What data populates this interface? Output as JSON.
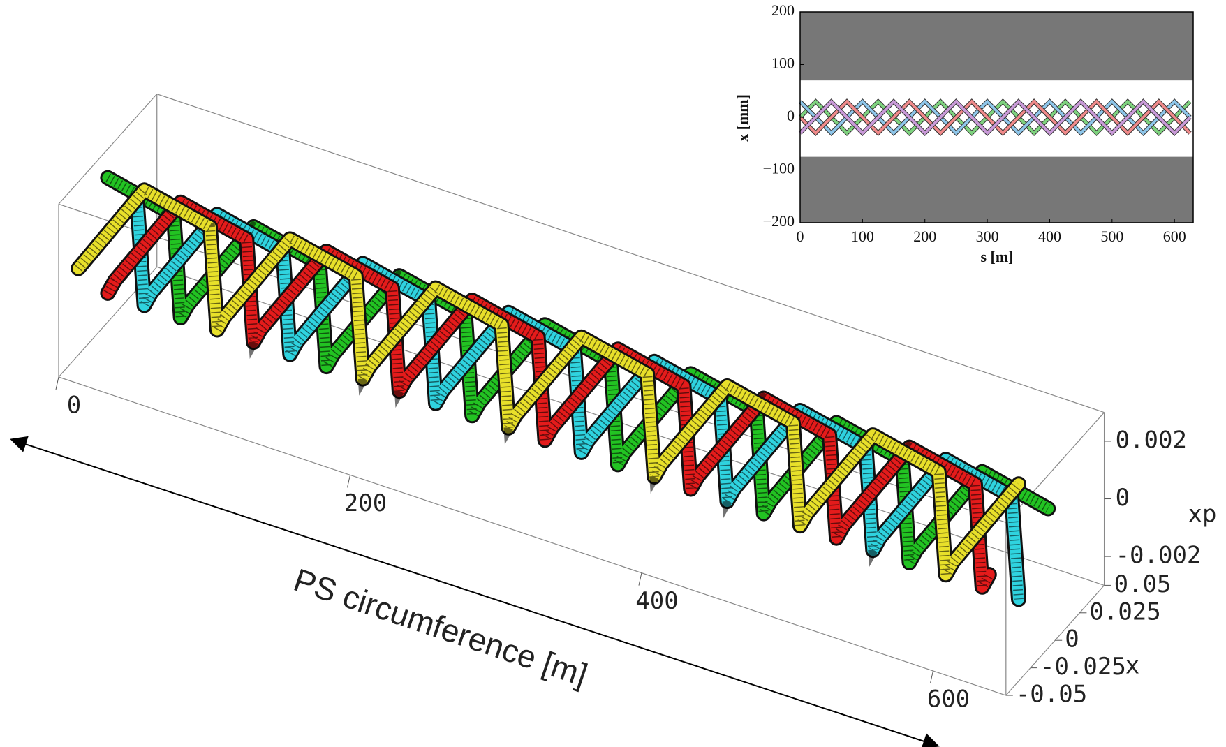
{
  "chart_data": [
    {
      "type": "tube3d",
      "s_label": "PS circumference [m]",
      "x_label": "x",
      "xp_label": "xp",
      "s": [
        0,
        25,
        50,
        75,
        100,
        125,
        150,
        175,
        200,
        225,
        250,
        275,
        300,
        325,
        350,
        375,
        400,
        425,
        450,
        475,
        500,
        525,
        550,
        575,
        600,
        625
      ],
      "slim": [
        0,
        650
      ],
      "sticks": [
        0,
        200,
        400,
        600
      ],
      "xlim": [
        -0.05,
        0.05
      ],
      "xticks": [
        0.05,
        0.025,
        0,
        -0.025,
        -0.05
      ],
      "xplim": [
        -0.003,
        0.003
      ],
      "xpticks": [
        0.002,
        0,
        -0.002
      ],
      "series": [
        {
          "color": "#22c322",
          "x": [
            0,
            0.03,
            0,
            -0.03,
            0,
            0.03,
            0,
            -0.03,
            0,
            0.03,
            0,
            -0.03,
            0,
            0.03,
            0,
            -0.03,
            0,
            0.03,
            0,
            -0.03,
            0,
            0.03,
            0,
            -0.03,
            0,
            0.03
          ],
          "xp": [
            0.002,
            0,
            -0.002,
            0,
            0.002,
            0,
            -0.002,
            0,
            0.002,
            0,
            -0.002,
            0,
            0.002,
            0,
            -0.002,
            0,
            0.002,
            0,
            -0.002,
            0,
            0.002,
            0,
            -0.002,
            0,
            0.002,
            0
          ]
        },
        {
          "color": "#2fd3df",
          "x": [
            0.03,
            0,
            -0.03,
            0,
            0.03,
            0,
            -0.03,
            0,
            0.03,
            0,
            -0.03,
            0,
            0.03,
            0,
            -0.03,
            0,
            0.03,
            0,
            -0.03,
            0,
            0.03,
            0,
            -0.03,
            0,
            0.03,
            0
          ],
          "xp": [
            0,
            -0.002,
            0,
            0.002,
            0,
            -0.002,
            0,
            0.002,
            0,
            -0.002,
            0,
            0.002,
            0,
            -0.002,
            0,
            0.002,
            0,
            -0.002,
            0,
            0.002,
            0,
            -0.002,
            0,
            0.002,
            0,
            -0.002
          ]
        },
        {
          "color": "#e41b1b",
          "x": [
            0,
            -0.03,
            0,
            0.03,
            0,
            -0.03,
            0,
            0.03,
            0,
            -0.03,
            0,
            0.03,
            0,
            -0.03,
            0,
            0.03,
            0,
            -0.03,
            0,
            0.03,
            0,
            -0.03,
            0,
            0.03,
            0,
            -0.03
          ],
          "xp": [
            -0.002,
            0,
            0.002,
            0,
            -0.002,
            0,
            0.002,
            0,
            -0.002,
            0,
            0.002,
            0,
            -0.002,
            0,
            0.002,
            0,
            -0.002,
            0,
            0.002,
            0,
            -0.002,
            0,
            0.002,
            0,
            -0.002,
            0
          ]
        },
        {
          "color": "#e8e02a",
          "x": [
            -0.03,
            0,
            0.03,
            0,
            -0.03,
            0,
            0.03,
            0,
            -0.03,
            0,
            0.03,
            0,
            -0.03,
            0,
            0.03,
            0,
            -0.03,
            0,
            0.03,
            0,
            -0.03,
            0,
            0.03,
            0,
            -0.03,
            0
          ],
          "xp": [
            0,
            0.002,
            0,
            -0.002,
            0,
            0.002,
            0,
            -0.002,
            0,
            0.002,
            0,
            -0.002,
            0,
            0.002,
            0,
            -0.002,
            0,
            0.002,
            0,
            -0.002,
            0,
            0.002,
            0,
            -0.002,
            0,
            0.002
          ]
        }
      ]
    },
    {
      "type": "line",
      "x_label": "s [m]",
      "y_label": "x [mm]",
      "x": [
        0,
        25,
        50,
        75,
        100,
        125,
        150,
        175,
        200,
        225,
        250,
        275,
        300,
        325,
        350,
        375,
        400,
        425,
        450,
        475,
        500,
        525,
        550,
        575,
        600,
        625
      ],
      "xlim": [
        0,
        630
      ],
      "xticks": [
        0,
        100,
        200,
        300,
        400,
        500,
        600
      ],
      "ylim": [
        -200,
        200
      ],
      "yticks": [
        {
          "value": -200,
          "label": "−200"
        },
        {
          "value": -100,
          "label": "−100"
        },
        0,
        100,
        200
      ],
      "aperture": [
        -75,
        70
      ],
      "aperture_color": "#777777",
      "series": [
        {
          "color": "#7ed27e",
          "values": [
            0,
            30,
            0,
            -30,
            0,
            30,
            0,
            -30,
            0,
            30,
            0,
            -30,
            0,
            30,
            0,
            -30,
            0,
            30,
            0,
            -30,
            0,
            30,
            0,
            -30,
            0,
            30
          ]
        },
        {
          "color": "#8ec6ea",
          "values": [
            30,
            0,
            -30,
            0,
            30,
            0,
            -30,
            0,
            30,
            0,
            -30,
            0,
            30,
            0,
            -30,
            0,
            30,
            0,
            -30,
            0,
            30,
            0,
            -30,
            0,
            30,
            0
          ]
        },
        {
          "color": "#f08a8a",
          "values": [
            0,
            -30,
            0,
            30,
            0,
            -30,
            0,
            30,
            0,
            -30,
            0,
            30,
            0,
            -30,
            0,
            30,
            0,
            -30,
            0,
            30,
            0,
            -30,
            0,
            30,
            0,
            -30
          ]
        },
        {
          "color": "#c99ad8",
          "values": [
            -30,
            0,
            30,
            0,
            -30,
            0,
            30,
            0,
            -30,
            0,
            30,
            0,
            -30,
            0,
            30,
            0,
            -30,
            0,
            30,
            0,
            -30,
            0,
            30,
            0,
            -30,
            0
          ]
        }
      ]
    }
  ]
}
